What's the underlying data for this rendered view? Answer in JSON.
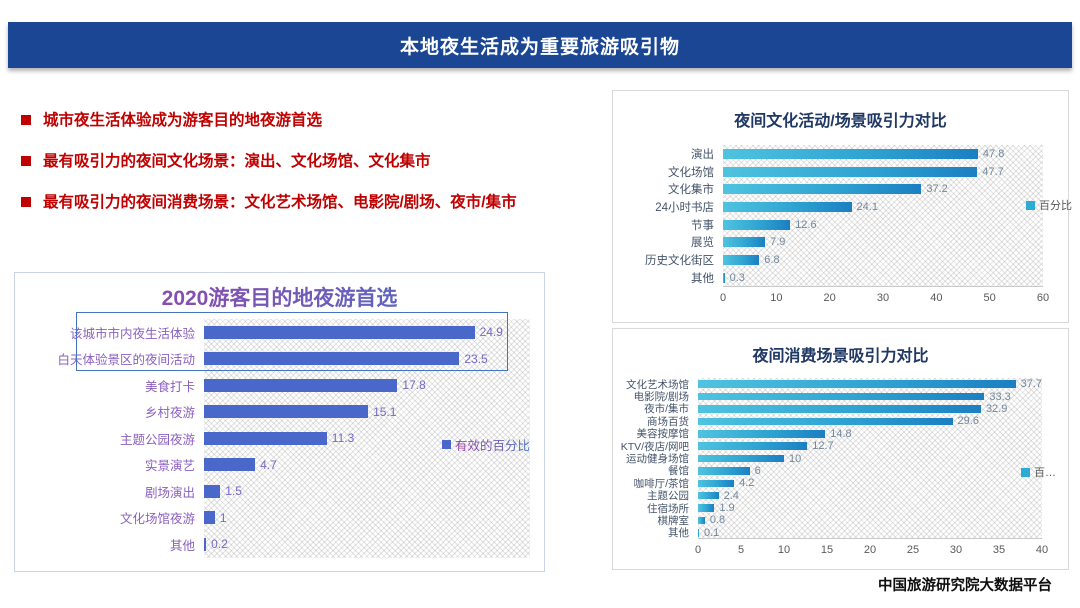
{
  "header": {
    "title": "本地夜生活成为重要旅游吸引物"
  },
  "bullets": [
    "城市夜生活体验成为游客目的地夜游首选",
    "最有吸引力的夜间文化场景：演出、文化场馆、文化集市",
    "最有吸引力的夜间消费场景：文化艺术场馆、电影院/剧场、夜市/集市"
  ],
  "footer": {
    "source": "中国旅游研究院大数据平台"
  },
  "colors": {
    "header_bg": "#1B4693",
    "bullet_red": "#C00000",
    "left_bar": "#4A68C9",
    "left_label": "#8A5FC0",
    "title_gradient_start": "#A03FA3",
    "title_gradient_end": "#4472C4",
    "highlight_border": "#4472C4",
    "right_title": "#1F3864",
    "bar_gradient_start": "#4FC3DF",
    "bar_gradient_end": "#1B7FC2",
    "right_label": "#44546A",
    "value_label": "#72879B",
    "tick_label": "#595959"
  },
  "chart_data": [
    {
      "id": "destination-night-preference",
      "type": "bar",
      "orientation": "horizontal",
      "title": "2020游客目的地夜游首选",
      "legend": "有效的百分比",
      "legend_position": "right-middle",
      "categories": [
        "该城市市内夜生活体验",
        "白天体验景区的夜间活动",
        "美食打卡",
        "乡村夜游",
        "主题公园夜游",
        "实景演艺",
        "剧场演出",
        "文化场馆夜游",
        "其他"
      ],
      "values": [
        24.9,
        23.5,
        17.8,
        15.1,
        11.3,
        4.7,
        1.5,
        1,
        0.2
      ],
      "xlim": [
        0,
        30
      ],
      "grid": false,
      "highlighted_rows": [
        0,
        1
      ]
    },
    {
      "id": "night-culture-scene-attraction",
      "type": "bar",
      "orientation": "horizontal",
      "title": "夜间文化活动/场景吸引力对比",
      "legend": "百分比",
      "legend_position": "right-middle",
      "categories": [
        "演出",
        "文化场馆",
        "文化集市",
        "24小时书店",
        "节事",
        "展览",
        "历史文化街区",
        "其他"
      ],
      "values": [
        47.8,
        47.7,
        37.2,
        24.1,
        12.6,
        7.9,
        6.8,
        0.3
      ],
      "xlim": [
        0,
        60
      ],
      "xticks": [
        0,
        10,
        20,
        30,
        40,
        50,
        60
      ],
      "grid": false
    },
    {
      "id": "night-consumption-scene-attraction",
      "type": "bar",
      "orientation": "horizontal",
      "title": "夜间消费场景吸引力对比",
      "legend": "百…",
      "legend_position": "right-middle",
      "categories": [
        "文化艺术场馆",
        "电影院/剧场",
        "夜市/集市",
        "商场百货",
        "美容按摩馆",
        "KTV/夜店/网吧",
        "运动健身场馆",
        "餐馆",
        "咖啡厅/茶馆",
        "主题公园",
        "住宿场所",
        "棋牌室",
        "其他"
      ],
      "values": [
        37.7,
        33.3,
        32.9,
        29.6,
        14.8,
        12.7,
        10,
        6,
        4.2,
        2.4,
        1.9,
        0.8,
        0.1
      ],
      "xlim": [
        0,
        40
      ],
      "xticks": [
        0,
        5,
        10,
        15,
        20,
        25,
        30,
        35,
        40
      ],
      "grid": false
    }
  ]
}
